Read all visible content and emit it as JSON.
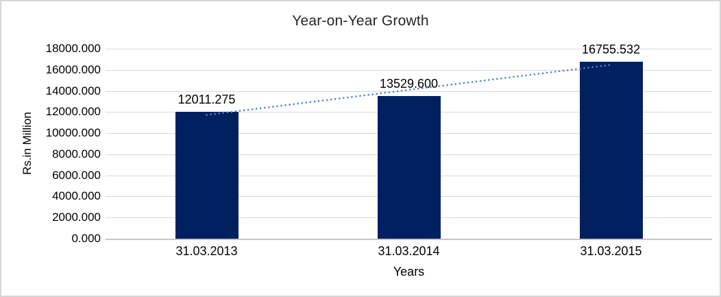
{
  "chart_data": {
    "type": "bar",
    "title": "Year-on-Year Growth",
    "xlabel": "Years",
    "ylabel": "Rs.in Million",
    "categories": [
      "31.03.2013",
      "31.03.2014",
      "31.03.2015"
    ],
    "values": [
      12011.275,
      13529.6,
      16755.532
    ],
    "data_labels": [
      "12011.275",
      "13529.600",
      "16755.532"
    ],
    "ylim": [
      0,
      18000
    ],
    "y_tick_step": 2000,
    "y_tick_labels": [
      "0.000",
      "2000.000",
      "4000.000",
      "6000.000",
      "8000.000",
      "10000.000",
      "12000.000",
      "14000.000",
      "16000.000",
      "18000.000"
    ],
    "grid": true,
    "legend": "none",
    "trendline": {
      "type": "linear",
      "style": "dotted"
    },
    "colors": {
      "bar": "#002060",
      "trendline": "#4e86c8",
      "gridline": "#d9d9d9",
      "axis_line": "#c6c6c6",
      "text": "#000000",
      "title_text": "#262626",
      "background": "#ffffff",
      "frame_border": "#d6d6d6"
    }
  }
}
